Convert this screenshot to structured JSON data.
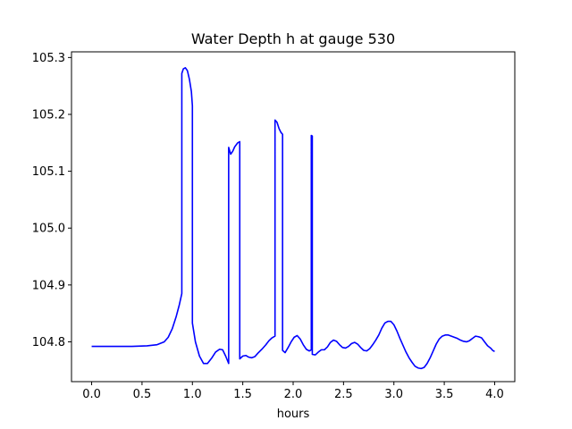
{
  "chart_data": {
    "type": "line",
    "title": "Water Depth h at gauge 530",
    "xlabel": "hours",
    "ylabel": "",
    "xlim": [
      -0.2,
      4.2
    ],
    "ylim": [
      104.73,
      105.31
    ],
    "xticks": [
      0.0,
      0.5,
      1.0,
      1.5,
      2.0,
      2.5,
      3.0,
      3.5,
      4.0
    ],
    "xtick_labels": [
      "0.0",
      "0.5",
      "1.0",
      "1.5",
      "2.0",
      "2.5",
      "3.0",
      "3.5",
      "4.0"
    ],
    "yticks": [
      104.8,
      104.9,
      105.0,
      105.1,
      105.2,
      105.3
    ],
    "ytick_labels": [
      "104.8",
      "104.9",
      "105.0",
      "105.1",
      "105.2",
      "105.3"
    ],
    "grid": false,
    "series": [
      {
        "color": "#0000ff",
        "points": [
          [
            0.0,
            104.792
          ],
          [
            0.2,
            104.792
          ],
          [
            0.4,
            104.792
          ],
          [
            0.55,
            104.793
          ],
          [
            0.65,
            104.795
          ],
          [
            0.72,
            104.8
          ],
          [
            0.76,
            104.808
          ],
          [
            0.8,
            104.823
          ],
          [
            0.84,
            104.845
          ],
          [
            0.87,
            104.865
          ],
          [
            0.895,
            104.885
          ],
          [
            0.895,
            105.272
          ],
          [
            0.91,
            105.28
          ],
          [
            0.93,
            105.282
          ],
          [
            0.95,
            105.277
          ],
          [
            0.97,
            105.262
          ],
          [
            0.99,
            105.24
          ],
          [
            1.0,
            105.215
          ],
          [
            1.0,
            104.833
          ],
          [
            1.03,
            104.8
          ],
          [
            1.07,
            104.775
          ],
          [
            1.11,
            104.762
          ],
          [
            1.15,
            104.762
          ],
          [
            1.19,
            104.771
          ],
          [
            1.23,
            104.782
          ],
          [
            1.27,
            104.787
          ],
          [
            1.3,
            104.786
          ],
          [
            1.33,
            104.775
          ],
          [
            1.36,
            104.762
          ],
          [
            1.36,
            105.142
          ],
          [
            1.38,
            105.13
          ],
          [
            1.4,
            105.135
          ],
          [
            1.42,
            105.143
          ],
          [
            1.45,
            105.15
          ],
          [
            1.47,
            105.152
          ],
          [
            1.47,
            104.77
          ],
          [
            1.5,
            104.775
          ],
          [
            1.53,
            104.776
          ],
          [
            1.56,
            104.773
          ],
          [
            1.59,
            104.772
          ],
          [
            1.62,
            104.774
          ],
          [
            1.65,
            104.78
          ],
          [
            1.69,
            104.787
          ],
          [
            1.73,
            104.795
          ],
          [
            1.76,
            104.802
          ],
          [
            1.79,
            104.807
          ],
          [
            1.82,
            104.81
          ],
          [
            1.82,
            105.19
          ],
          [
            1.84,
            105.186
          ],
          [
            1.86,
            105.175
          ],
          [
            1.88,
            105.168
          ],
          [
            1.895,
            105.165
          ],
          [
            1.895,
            104.785
          ],
          [
            1.92,
            104.781
          ],
          [
            1.95,
            104.79
          ],
          [
            1.98,
            104.8
          ],
          [
            2.01,
            104.808
          ],
          [
            2.04,
            104.811
          ],
          [
            2.07,
            104.805
          ],
          [
            2.1,
            104.795
          ],
          [
            2.13,
            104.787
          ],
          [
            2.16,
            104.784
          ],
          [
            2.18,
            104.786
          ],
          [
            2.18,
            105.163
          ],
          [
            2.19,
            105.162
          ],
          [
            2.19,
            104.778
          ],
          [
            2.22,
            104.777
          ],
          [
            2.25,
            104.782
          ],
          [
            2.28,
            104.786
          ],
          [
            2.31,
            104.786
          ],
          [
            2.34,
            104.791
          ],
          [
            2.37,
            104.799
          ],
          [
            2.4,
            104.803
          ],
          [
            2.43,
            104.801
          ],
          [
            2.46,
            104.795
          ],
          [
            2.49,
            104.79
          ],
          [
            2.52,
            104.789
          ],
          [
            2.55,
            104.792
          ],
          [
            2.58,
            104.797
          ],
          [
            2.61,
            104.799
          ],
          [
            2.64,
            104.796
          ],
          [
            2.67,
            104.79
          ],
          [
            2.7,
            104.785
          ],
          [
            2.73,
            104.784
          ],
          [
            2.76,
            104.788
          ],
          [
            2.79,
            104.795
          ],
          [
            2.82,
            104.803
          ],
          [
            2.85,
            104.812
          ],
          [
            2.88,
            104.824
          ],
          [
            2.91,
            104.833
          ],
          [
            2.94,
            104.836
          ],
          [
            2.97,
            104.836
          ],
          [
            3.0,
            104.83
          ],
          [
            3.03,
            104.819
          ],
          [
            3.06,
            104.806
          ],
          [
            3.09,
            104.794
          ],
          [
            3.12,
            104.782
          ],
          [
            3.15,
            104.772
          ],
          [
            3.18,
            104.764
          ],
          [
            3.21,
            104.757
          ],
          [
            3.24,
            104.754
          ],
          [
            3.27,
            104.753
          ],
          [
            3.3,
            104.755
          ],
          [
            3.33,
            104.762
          ],
          [
            3.36,
            104.772
          ],
          [
            3.39,
            104.784
          ],
          [
            3.42,
            104.796
          ],
          [
            3.45,
            104.805
          ],
          [
            3.48,
            104.81
          ],
          [
            3.51,
            104.812
          ],
          [
            3.54,
            104.812
          ],
          [
            3.57,
            104.81
          ],
          [
            3.6,
            104.808
          ],
          [
            3.63,
            104.806
          ],
          [
            3.66,
            104.803
          ],
          [
            3.69,
            104.801
          ],
          [
            3.72,
            104.8
          ],
          [
            3.75,
            104.802
          ],
          [
            3.78,
            104.806
          ],
          [
            3.81,
            104.81
          ],
          [
            3.84,
            104.809
          ],
          [
            3.87,
            104.807
          ],
          [
            3.9,
            104.8
          ],
          [
            3.93,
            104.793
          ],
          [
            3.96,
            104.789
          ],
          [
            3.98,
            104.785
          ],
          [
            4.0,
            104.783
          ]
        ]
      }
    ]
  }
}
